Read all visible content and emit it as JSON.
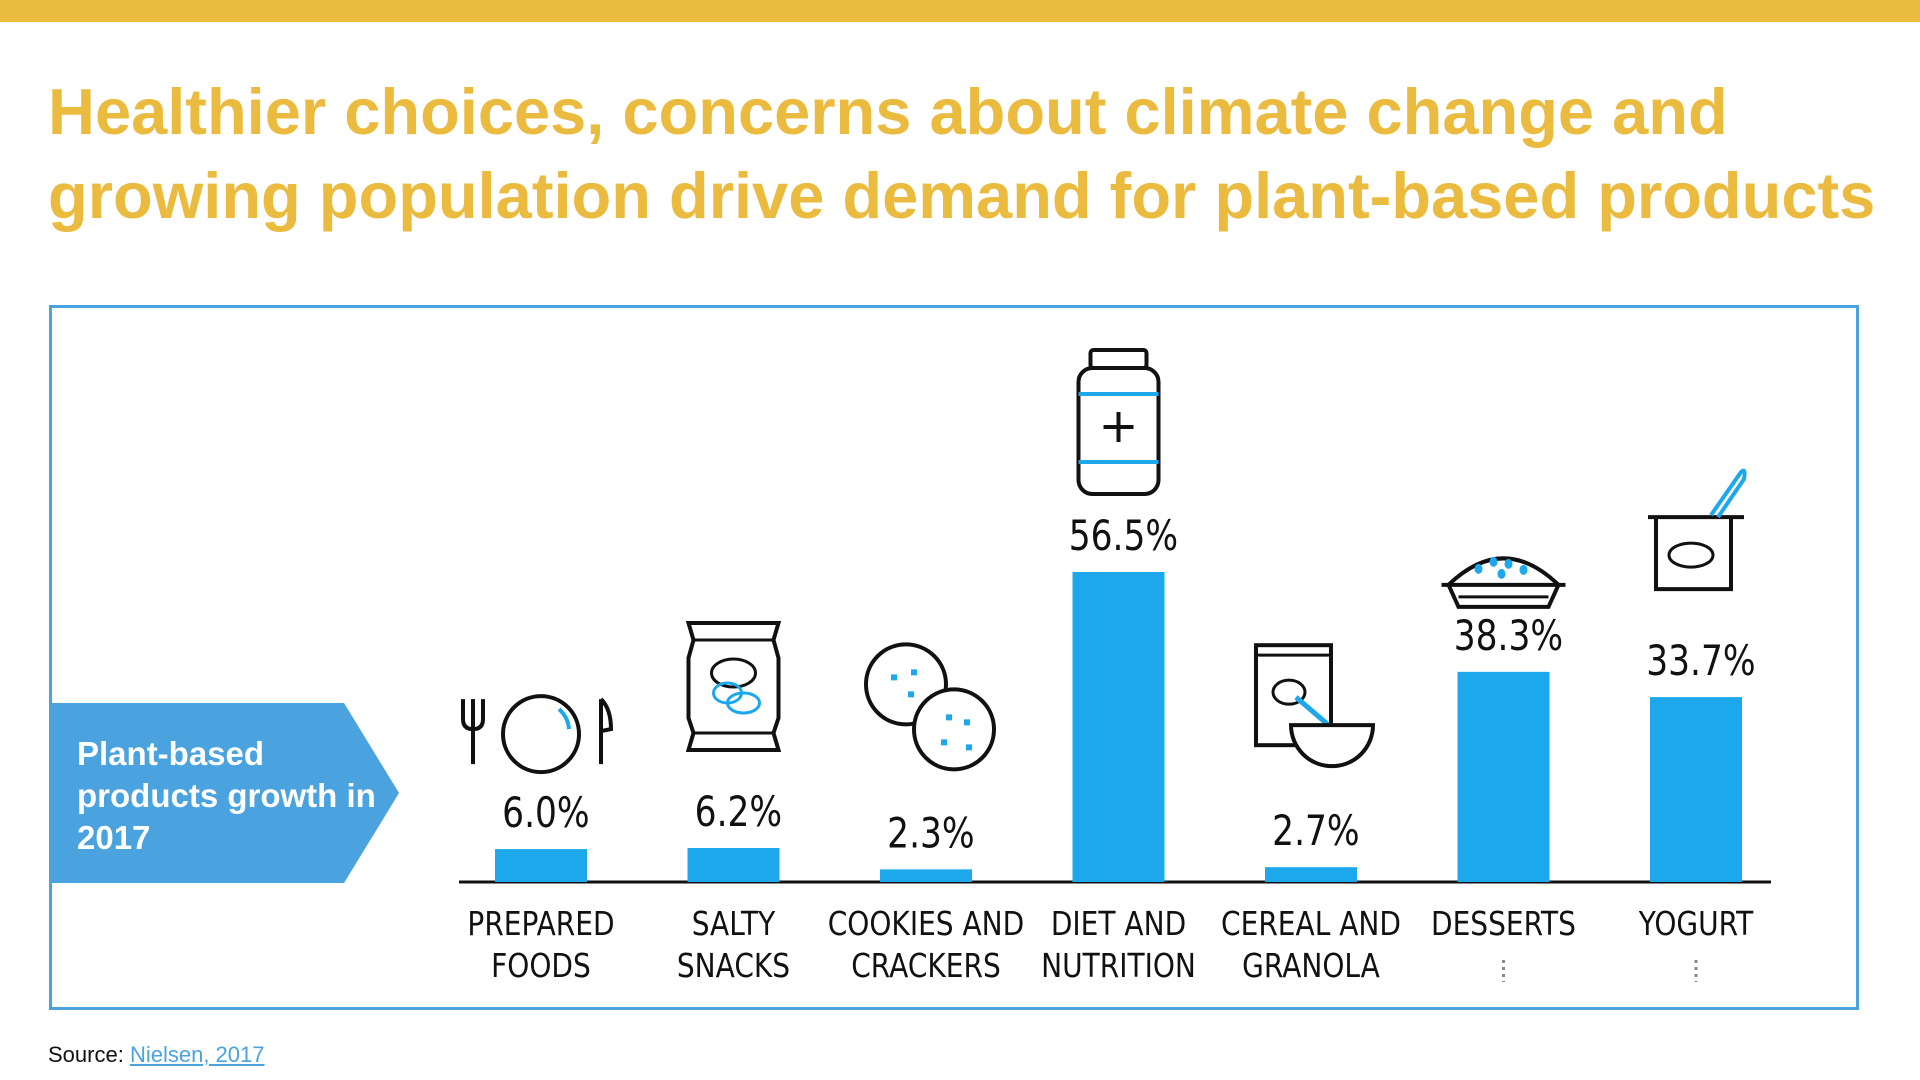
{
  "slide": {
    "title_line1": "Healthier choices, concerns about climate change and",
    "title_line2": "growing population drive demand for plant-based products",
    "callout": "Plant-based products growth in 2017",
    "source_label": "Source:",
    "source_link": "Nielsen, 2017"
  },
  "colors": {
    "accent": "#EBBB3F",
    "bar": "#1DA8EC",
    "frame": "#4AA3DF",
    "callout": "#4AA3DF"
  },
  "chart_data": {
    "type": "bar",
    "title": "Plant-based products growth in 2017",
    "categories": [
      [
        "PREPARED",
        "FOODS"
      ],
      [
        "SALTY",
        "SNACKS"
      ],
      [
        "COOKIES AND",
        "CRACKERS"
      ],
      [
        "DIET AND",
        "NUTRITION"
      ],
      [
        "CEREAL AND",
        "GRANOLA"
      ],
      [
        "DESSERTS"
      ],
      [
        "YOGURT"
      ]
    ],
    "values": [
      6.0,
      6.2,
      2.3,
      56.5,
      2.7,
      38.3,
      33.7
    ],
    "labels": [
      "6.0%",
      "6.2%",
      "2.3%",
      "56.5%",
      "2.7%",
      "38.3%",
      "33.7%"
    ],
    "icons": [
      "plate-fork-knife-icon",
      "chips-bag-icon",
      "cookies-icon",
      "supplement-jar-icon",
      "cereal-bowl-icon",
      "pie-icon",
      "yogurt-cup-icon"
    ],
    "unit": "%",
    "ylim": [
      0,
      56.5
    ]
  }
}
